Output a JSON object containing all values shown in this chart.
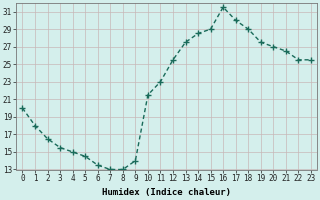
{
  "x": [
    0,
    1,
    2,
    3,
    4,
    5,
    6,
    7,
    8,
    9,
    10,
    11,
    12,
    13,
    14,
    15,
    16,
    17,
    18,
    19,
    20,
    21,
    22,
    23
  ],
  "y": [
    20,
    18,
    16.5,
    15.5,
    15,
    14.5,
    13.5,
    13,
    13,
    14,
    21.5,
    23,
    25.5,
    27.5,
    28.5,
    29,
    31.5,
    30,
    29,
    27.5,
    27,
    26.5,
    25.5,
    25.5
  ],
  "line_color": "#1a6b5a",
  "marker": "+",
  "marker_size": 4,
  "marker_linewidth": 1.0,
  "bg_color": "#d4efec",
  "grid_major_color": "#c8b8b8",
  "grid_minor_color": "#c8e8e4",
  "xlabel": "Humidex (Indice chaleur)",
  "ylim": [
    13,
    32
  ],
  "xlim": [
    -0.5,
    23.5
  ],
  "yticks": [
    13,
    15,
    17,
    19,
    21,
    23,
    25,
    27,
    29,
    31
  ],
  "xticks": [
    0,
    1,
    2,
    3,
    4,
    5,
    6,
    7,
    8,
    9,
    10,
    11,
    12,
    13,
    14,
    15,
    16,
    17,
    18,
    19,
    20,
    21,
    22,
    23
  ],
  "xlabel_fontsize": 6.5,
  "tick_fontsize": 5.5,
  "linewidth": 1.0
}
